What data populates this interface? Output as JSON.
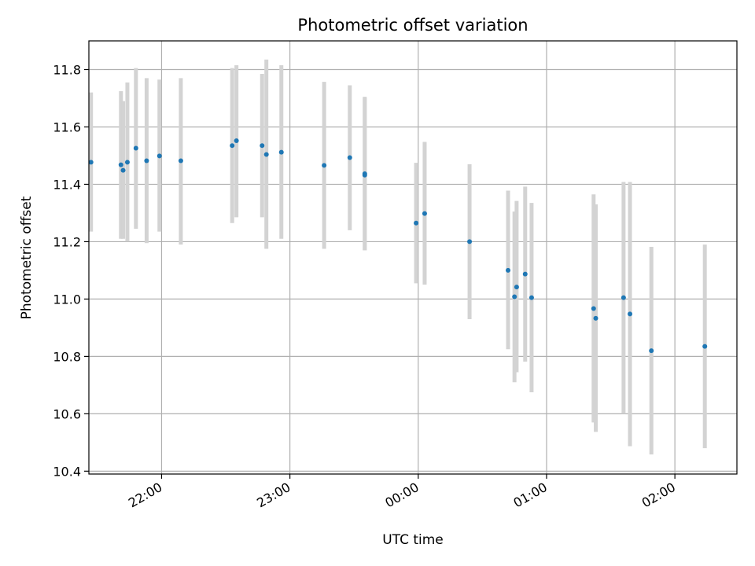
{
  "chart_data": {
    "type": "scatter",
    "title": "Photometric offset variation",
    "xlabel": "UTC time",
    "ylabel": "Photometric offset",
    "xlim": [
      "21:26",
      "02:29"
    ],
    "ylim": [
      10.39,
      11.9
    ],
    "x_ticks": [
      "22:00",
      "23:00",
      "00:00",
      "01:00",
      "02:00"
    ],
    "y_ticks": [
      "10.4",
      "10.6",
      "10.8",
      "11.0",
      "11.2",
      "11.4",
      "11.6",
      "11.8"
    ],
    "grid": true,
    "colors": {
      "point": "#1f77b4",
      "errorbar": "#d3d3d3"
    },
    "points": [
      {
        "t": "21:27",
        "y": 11.477,
        "lo": 11.235,
        "hi": 11.72
      },
      {
        "t": "21:41",
        "y": 11.468,
        "lo": 11.21,
        "hi": 11.725
      },
      {
        "t": "21:42",
        "y": 11.449,
        "lo": 11.21,
        "hi": 11.69
      },
      {
        "t": "21:44",
        "y": 11.477,
        "lo": 11.2,
        "hi": 11.755
      },
      {
        "t": "21:48",
        "y": 11.526,
        "lo": 11.245,
        "hi": 11.805
      },
      {
        "t": "21:53",
        "y": 11.482,
        "lo": 11.195,
        "hi": 11.77
      },
      {
        "t": "21:59",
        "y": 11.499,
        "lo": 11.235,
        "hi": 11.765
      },
      {
        "t": "22:09",
        "y": 11.482,
        "lo": 11.19,
        "hi": 11.77
      },
      {
        "t": "22:33",
        "y": 11.535,
        "lo": 11.265,
        "hi": 11.805
      },
      {
        "t": "22:35",
        "y": 11.552,
        "lo": 11.285,
        "hi": 11.815
      },
      {
        "t": "22:47",
        "y": 11.535,
        "lo": 11.285,
        "hi": 11.785
      },
      {
        "t": "22:49",
        "y": 11.504,
        "lo": 11.175,
        "hi": 11.835
      },
      {
        "t": "22:56",
        "y": 11.512,
        "lo": 11.21,
        "hi": 11.815
      },
      {
        "t": "23:16",
        "y": 11.466,
        "lo": 11.175,
        "hi": 11.757
      },
      {
        "t": "23:28",
        "y": 11.493,
        "lo": 11.24,
        "hi": 11.745
      },
      {
        "t": "23:35",
        "y": 11.437,
        "lo": 11.17,
        "hi": 11.705
      },
      {
        "t": "23:35",
        "y": 11.432,
        "lo": 11.17,
        "hi": 11.7
      },
      {
        "t": "23:59",
        "y": 11.265,
        "lo": 11.055,
        "hi": 11.475
      },
      {
        "t": "00:03",
        "y": 11.298,
        "lo": 11.05,
        "hi": 11.548
      },
      {
        "t": "00:24",
        "y": 11.2,
        "lo": 10.93,
        "hi": 11.47
      },
      {
        "t": "00:42",
        "y": 11.1,
        "lo": 10.825,
        "hi": 11.378
      },
      {
        "t": "00:45",
        "y": 11.008,
        "lo": 10.71,
        "hi": 11.305
      },
      {
        "t": "00:46",
        "y": 11.042,
        "lo": 10.745,
        "hi": 11.342
      },
      {
        "t": "00:50",
        "y": 11.087,
        "lo": 10.782,
        "hi": 11.392
      },
      {
        "t": "00:53",
        "y": 11.005,
        "lo": 10.675,
        "hi": 11.335
      },
      {
        "t": "01:22",
        "y": 10.967,
        "lo": 10.57,
        "hi": 11.365
      },
      {
        "t": "01:23",
        "y": 10.933,
        "lo": 10.537,
        "hi": 11.33
      },
      {
        "t": "01:36",
        "y": 11.005,
        "lo": 10.6,
        "hi": 11.408
      },
      {
        "t": "01:39",
        "y": 10.948,
        "lo": 10.487,
        "hi": 11.408
      },
      {
        "t": "01:49",
        "y": 10.82,
        "lo": 10.458,
        "hi": 11.182
      },
      {
        "t": "02:14",
        "y": 10.835,
        "lo": 10.48,
        "hi": 11.19
      }
    ]
  }
}
